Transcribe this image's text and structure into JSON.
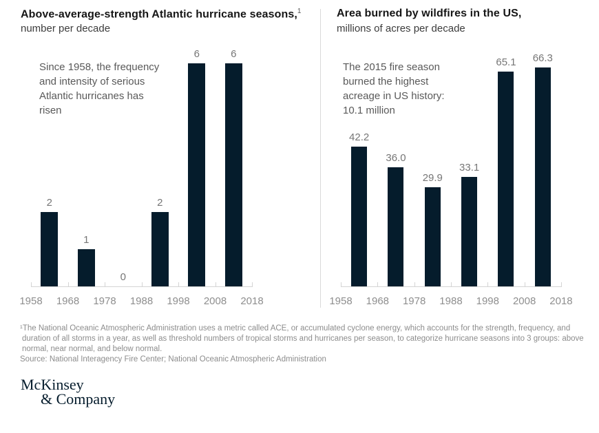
{
  "chart_data": [
    {
      "type": "bar",
      "title": "Above-average-strength Atlantic hurricane seasons,",
      "title_sup": "1",
      "subtitle": "number per decade",
      "annotation_lines": [
        "Since 1958, the frequency",
        "and intensity of serious",
        "Atlantic hurricanes has",
        "risen"
      ],
      "categories": [
        "1958",
        "1968",
        "1978",
        "1988",
        "1998",
        "2008",
        "2018"
      ],
      "values": [
        2,
        1,
        0,
        2,
        6,
        6
      ],
      "value_labels": [
        "2",
        "1",
        "0",
        "2",
        "6",
        "6"
      ],
      "ylim": [
        0,
        6
      ],
      "bar_color": "#051c2c",
      "bars_span_decades": true,
      "grid": false,
      "legend": false
    },
    {
      "type": "bar",
      "title": "Area burned by wildfires in the US,",
      "subtitle": "millions of acres per decade",
      "annotation_lines": [
        "The 2015 fire season",
        "burned the highest",
        "acreage in US history:",
        "10.1 million"
      ],
      "categories": [
        "1958",
        "1968",
        "1978",
        "1988",
        "1998",
        "2008",
        "2018"
      ],
      "values": [
        42.2,
        36.0,
        29.9,
        33.1,
        65.1,
        66.3
      ],
      "value_labels": [
        "42.2",
        "36.0",
        "29.9",
        "33.1",
        "65.1",
        "66.3"
      ],
      "ylim": [
        0,
        66.3
      ],
      "bar_color": "#051c2c",
      "bars_span_decades": true,
      "grid": false,
      "legend": false
    }
  ],
  "footnotes": {
    "lines": [
      "¹The National Oceanic Atmospheric Administration uses a metric called ACE, or accumulated cyclone energy, which accounts for the strength, frequency, and",
      "duration of all storms in a year, as well as threshold numbers of tropical storms and hurricanes per season, to categorize hurricane seasons into 3 groups: above",
      "normal, near normal, and below normal."
    ],
    "source": "Source: National Interagency Fire Center; National Oceanic Atmospheric Administration"
  },
  "logo": {
    "line1": "McKinsey",
    "line2": "& Company"
  },
  "colors": {
    "bar": "#051c2c",
    "axis": "#d4d4d4",
    "divider": "#d9d9d9",
    "logo": "#051c2c"
  }
}
